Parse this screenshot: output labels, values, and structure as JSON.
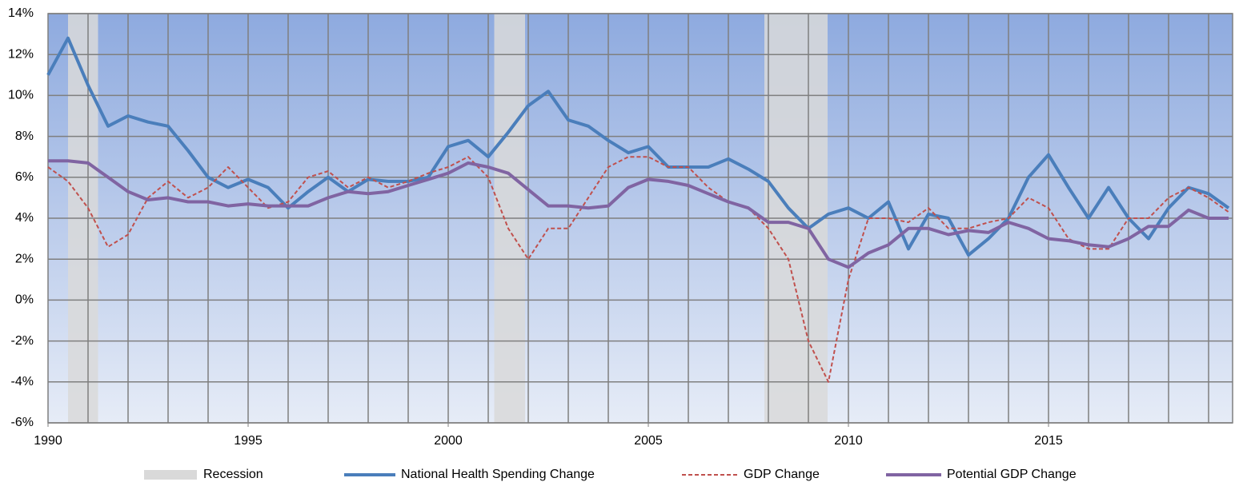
{
  "chart_data": {
    "type": "line",
    "x": [
      1990,
      1990.5,
      1991,
      1991.5,
      1992,
      1992.5,
      1993,
      1993.5,
      1994,
      1994.5,
      1995,
      1995.5,
      1996,
      1996.5,
      1997,
      1997.5,
      1998,
      1998.5,
      1999,
      1999.5,
      2000,
      2000.5,
      2001,
      2001.5,
      2002,
      2002.5,
      2003,
      2003.5,
      2004,
      2004.5,
      2005,
      2005.5,
      2006,
      2006.5,
      2007,
      2007.5,
      2008,
      2008.5,
      2009,
      2009.5,
      2010,
      2010.5,
      2011,
      2011.5,
      2012,
      2012.5,
      2013,
      2013.5,
      2014,
      2014.5,
      2015,
      2015.5,
      2016,
      2016.5,
      2017,
      2017.5,
      2018,
      2018.5,
      2019,
      2019.5
    ],
    "series": [
      {
        "name": "National Health Spending Change",
        "color": "#4a7ebb",
        "dash": "solid",
        "values": [
          11.0,
          12.8,
          10.5,
          8.5,
          9.0,
          8.7,
          8.5,
          7.3,
          6.0,
          5.5,
          5.9,
          5.5,
          4.5,
          5.3,
          6.0,
          5.3,
          5.9,
          5.8,
          5.8,
          6.0,
          7.5,
          7.8,
          7.0,
          8.2,
          9.5,
          10.2,
          8.8,
          8.5,
          7.8,
          7.2,
          7.5,
          6.5,
          6.5,
          6.5,
          6.9,
          6.4,
          5.8,
          4.5,
          3.5,
          4.2,
          4.5,
          4.0,
          4.8,
          2.5,
          4.2,
          4.0,
          2.2,
          3.0,
          4.0,
          6.0,
          7.1,
          5.5,
          4.0,
          5.5,
          4.0,
          3.0,
          4.5,
          5.5,
          5.2,
          4.5
        ]
      },
      {
        "name": "GDP Change",
        "color": "#c0504d",
        "dash": "dashed",
        "values": [
          6.5,
          5.8,
          4.5,
          2.6,
          3.2,
          5.0,
          5.8,
          5.0,
          5.5,
          6.5,
          5.5,
          4.5,
          4.8,
          6.0,
          6.3,
          5.5,
          6.0,
          5.5,
          5.8,
          6.2,
          6.5,
          7.0,
          6.0,
          3.5,
          2.0,
          3.5,
          3.5,
          5.0,
          6.5,
          7.0,
          7.0,
          6.5,
          6.5,
          5.5,
          4.8,
          4.5,
          3.5,
          2.0,
          -2.0,
          -4.0,
          1.0,
          4.0,
          4.0,
          3.8,
          4.5,
          3.5,
          3.5,
          3.8,
          4.0,
          5.0,
          4.5,
          3.0,
          2.5,
          2.5,
          4.0,
          4.0,
          5.0,
          5.5,
          5.0,
          4.3
        ]
      },
      {
        "name": "Potential GDP Change",
        "color": "#8064a2",
        "dash": "solid",
        "values": [
          6.8,
          6.8,
          6.7,
          6.0,
          5.3,
          4.9,
          5.0,
          4.8,
          4.8,
          4.6,
          4.7,
          4.6,
          4.6,
          4.6,
          5.0,
          5.3,
          5.2,
          5.3,
          5.6,
          5.9,
          6.2,
          6.7,
          6.5,
          6.2,
          5.4,
          4.6,
          4.6,
          4.5,
          4.6,
          5.5,
          5.9,
          5.8,
          5.6,
          5.2,
          4.8,
          4.5,
          3.8,
          3.8,
          3.5,
          2.0,
          1.6,
          2.3,
          2.7,
          3.5,
          3.5,
          3.2,
          3.4,
          3.3,
          3.8,
          3.5,
          3.0,
          2.9,
          2.7,
          2.6,
          3.0,
          3.6,
          3.6,
          4.4,
          4.0,
          4.0
        ]
      }
    ],
    "recession_label": "Recession",
    "recession_color": "#d9d9d9",
    "recessions": [
      [
        1990.5,
        1991.25
      ],
      [
        2001.15,
        2001.92
      ],
      [
        2007.9,
        2009.48
      ]
    ],
    "xlim": [
      1990,
      2019.6
    ],
    "xticks": [
      1990,
      1995,
      2000,
      2005,
      2010,
      2015
    ],
    "x_gridlines": [
      1991,
      1992,
      1993,
      1994,
      1995,
      1996,
      1997,
      1998,
      1999,
      2000,
      2001,
      2002,
      2003,
      2004,
      2005,
      2006,
      2007,
      2008,
      2009,
      2010,
      2011,
      2012,
      2013,
      2014,
      2015,
      2016,
      2017,
      2018,
      2019
    ],
    "ylim": [
      -6,
      14
    ],
    "yticks": [
      {
        "value": -6,
        "label": "-6%"
      },
      {
        "value": -4,
        "label": "-4%"
      },
      {
        "value": -2,
        "label": "-2%"
      },
      {
        "value": 0,
        "label": "0%"
      },
      {
        "value": 2,
        "label": "2%"
      },
      {
        "value": 4,
        "label": "4%"
      },
      {
        "value": 6,
        "label": "6%"
      },
      {
        "value": 8,
        "label": "8%"
      },
      {
        "value": 10,
        "label": "10%"
      },
      {
        "value": 12,
        "label": "12%"
      },
      {
        "value": 14,
        "label": "14%"
      }
    ],
    "grid": true,
    "legend": "bottom"
  }
}
